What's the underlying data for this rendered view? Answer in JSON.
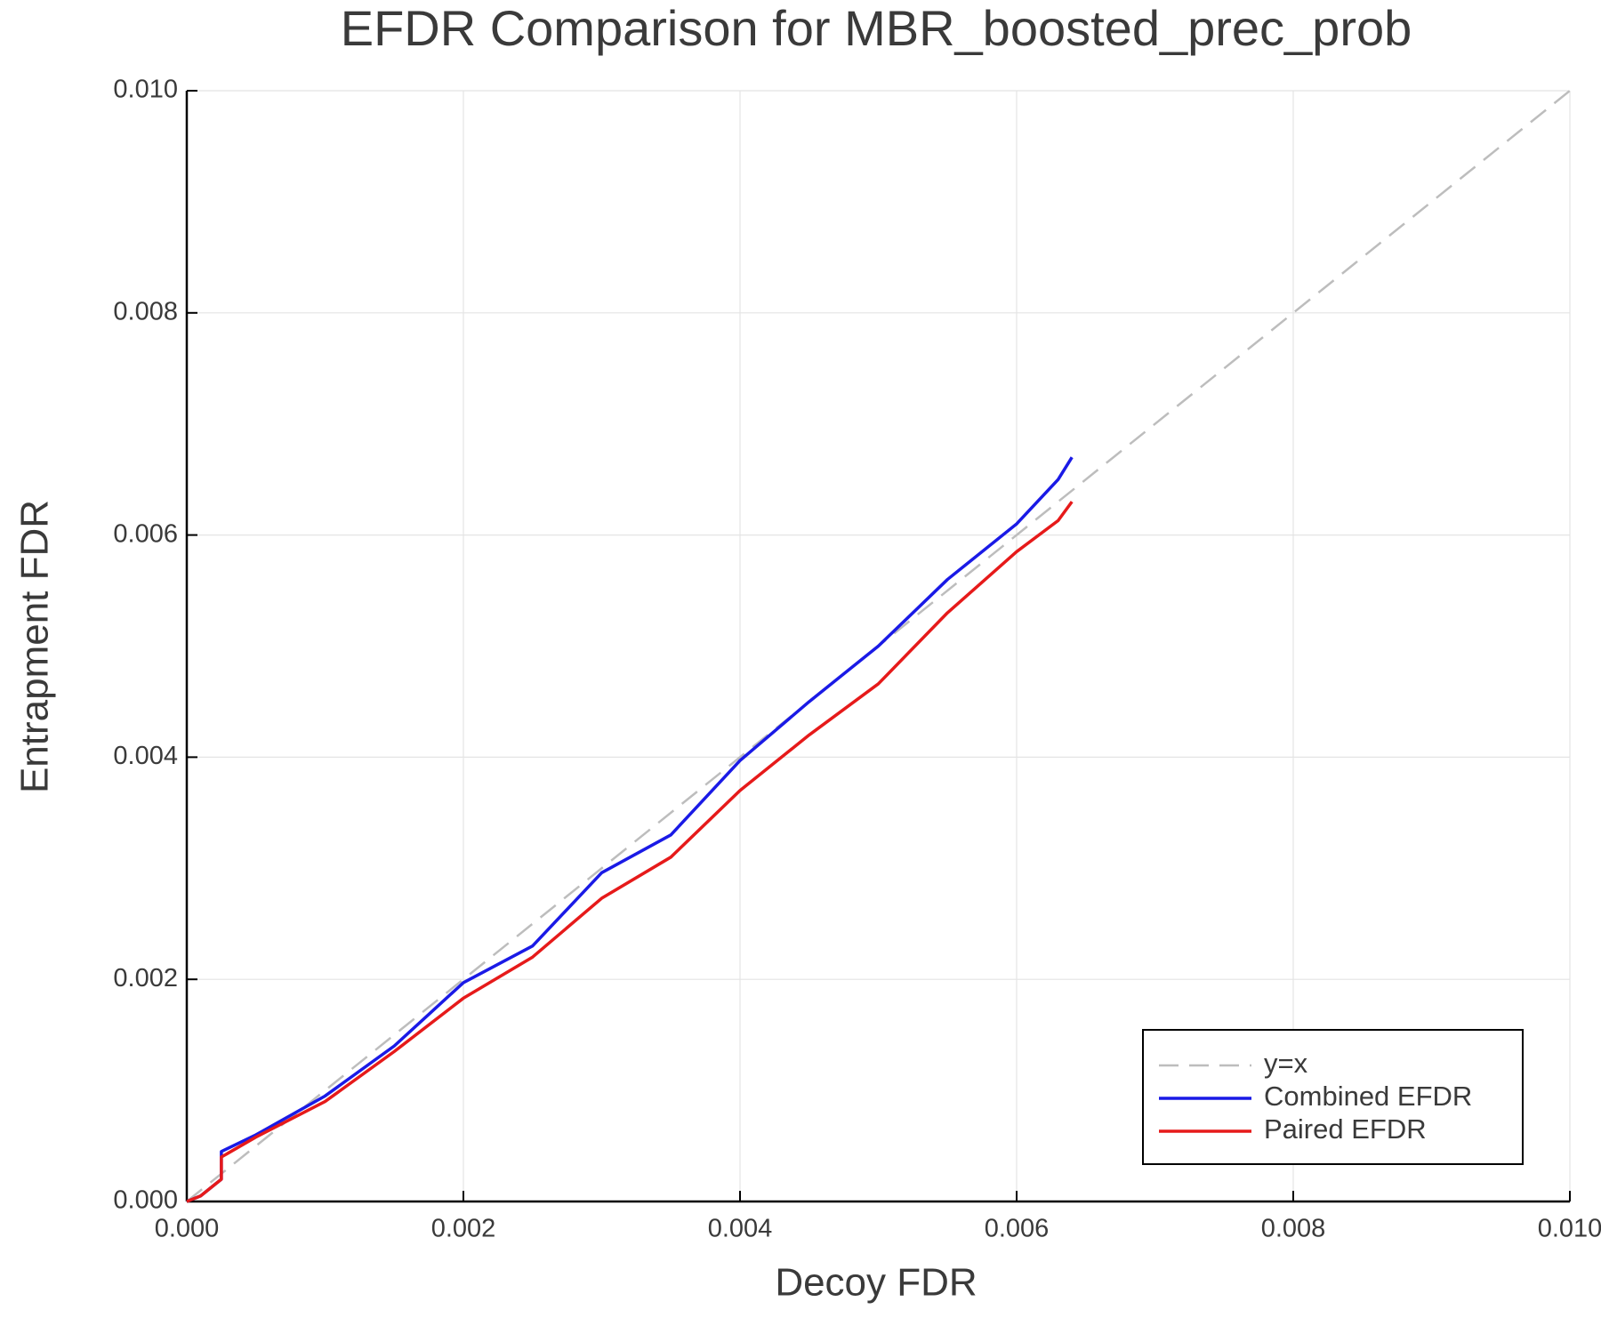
{
  "chart_data": {
    "type": "line",
    "title": "EFDR Comparison for MBR_boosted_prec_prob",
    "xlabel": "Decoy FDR",
    "ylabel": "Entrapment FDR",
    "xlim": [
      0,
      0.01
    ],
    "ylim": [
      0,
      0.01
    ],
    "xticks": [
      {
        "value": 0,
        "label": "0.000"
      },
      0.002,
      0.004,
      0.006,
      0.008,
      {
        "value": 0.01,
        "label": "0.010"
      }
    ],
    "yticks": [
      {
        "value": 0,
        "label": "0.000"
      },
      0.002,
      0.004,
      0.006,
      0.008,
      {
        "value": 0.01,
        "label": "0.010"
      }
    ],
    "grid": true,
    "legend": "lower right",
    "series": [
      {
        "name": "y=x",
        "color": "#bdbdbd",
        "dashed": true,
        "x": [
          0,
          0.01
        ],
        "values": [
          0,
          0.01
        ]
      },
      {
        "name": "Combined EFDR",
        "color": "#1a1ae6",
        "dashed": false,
        "x": [
          0,
          0.0001,
          0.00025,
          0.00025,
          0.0005,
          0.001,
          0.0015,
          0.002,
          0.0025,
          0.003,
          0.0035,
          0.004,
          0.0045,
          0.005,
          0.0055,
          0.006,
          0.0063,
          0.0064
        ],
        "values": [
          0,
          5e-05,
          0.0002,
          0.00045,
          0.0006,
          0.00095,
          0.0014,
          0.00197,
          0.0023,
          0.00296,
          0.0033,
          0.00397,
          0.0045,
          0.005,
          0.0056,
          0.0061,
          0.0065,
          0.0067
        ]
      },
      {
        "name": "Paired EFDR",
        "color": "#e61a1a",
        "dashed": false,
        "x": [
          0,
          0.0001,
          0.00025,
          0.00025,
          0.0005,
          0.001,
          0.0015,
          0.002,
          0.0025,
          0.003,
          0.0035,
          0.004,
          0.0045,
          0.005,
          0.0055,
          0.006,
          0.0063,
          0.0064
        ],
        "values": [
          0,
          5e-05,
          0.0002,
          0.0004,
          0.00058,
          0.0009,
          0.00135,
          0.00183,
          0.0022,
          0.00273,
          0.0031,
          0.0037,
          0.0042,
          0.00466,
          0.0053,
          0.00585,
          0.00613,
          0.0063
        ]
      }
    ]
  }
}
